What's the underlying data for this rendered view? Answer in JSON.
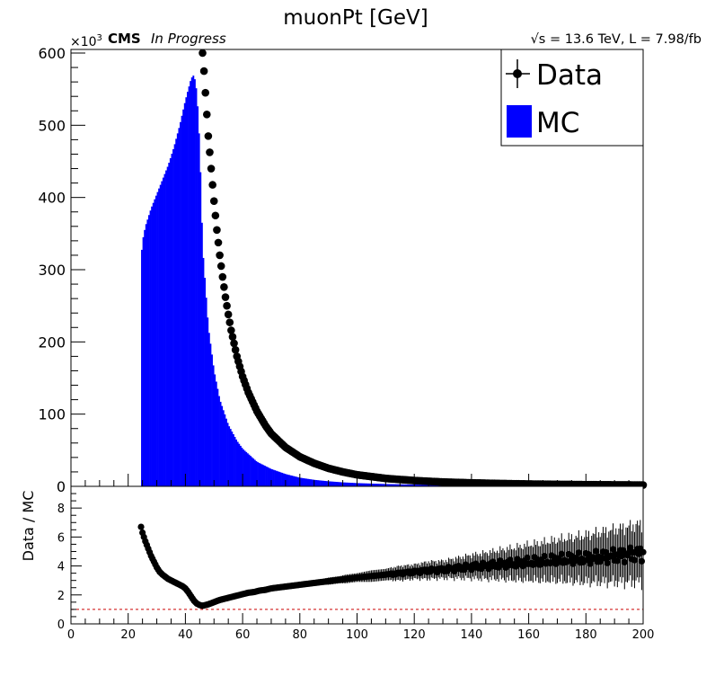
{
  "title": "muonPt [GeV]",
  "cms_label": "CMS",
  "cms_status": "In Progress",
  "energy_label": "√s = 13.6 TeV, L = 7.98/fb",
  "y_multiplier_base": "×10",
  "y_multiplier_exp": "3",
  "legend": {
    "data_label": "Data",
    "mc_label": "MC"
  },
  "ratio_ylabel": "Data / MC",
  "colors": {
    "mc": "#0000ff",
    "data": "#000000",
    "ref_line": "#cc0000"
  },
  "chart_data": [
    {
      "type": "bar",
      "role": "main",
      "title": "muonPt [GeV]",
      "xlim": [
        0,
        200
      ],
      "ylim": [
        0,
        600
      ],
      "y_unit": "x10^3",
      "yticks": [
        0,
        100,
        200,
        300,
        400,
        500,
        600
      ],
      "series": [
        {
          "name": "MC",
          "style": "filled histogram",
          "x": [
            24.5,
            25,
            26,
            28,
            30,
            32,
            34,
            36,
            38,
            40,
            41,
            42,
            43,
            44,
            45,
            46,
            48,
            50,
            52,
            55,
            58,
            60,
            65,
            70,
            75,
            80,
            85,
            90,
            95,
            100,
            105,
            110,
            120,
            130,
            140,
            150,
            160,
            170,
            180,
            190,
            200
          ],
          "values": [
            315,
            340,
            360,
            385,
            405,
            425,
            445,
            470,
            500,
            535,
            550,
            565,
            570,
            545,
            470,
            330,
            220,
            160,
            120,
            85,
            63,
            52,
            34,
            24,
            17,
            12,
            9,
            7,
            5.5,
            4.5,
            3.8,
            3.2,
            2.4,
            1.8,
            1.4,
            1.1,
            0.9,
            0.7,
            0.6,
            0.5,
            0.4
          ]
        },
        {
          "name": "Data",
          "style": "markers",
          "x": [
            46,
            46.5,
            47,
            47.5,
            48,
            49,
            50,
            51,
            52,
            53,
            54,
            55,
            56,
            58,
            60,
            62,
            65,
            68,
            70,
            75,
            80,
            85,
            90,
            95,
            100,
            110,
            120,
            130,
            140,
            150,
            160,
            170,
            180,
            190,
            200
          ],
          "values": [
            600,
            575,
            545,
            515,
            485,
            440,
            395,
            355,
            320,
            290,
            262,
            238,
            216,
            180,
            152,
            130,
            104,
            84,
            73,
            54,
            41,
            32,
            25,
            20,
            16,
            11,
            8,
            6,
            4.8,
            3.9,
            3.2,
            2.7,
            2.3,
            2.0,
            1.8
          ]
        }
      ]
    },
    {
      "type": "scatter",
      "role": "ratio",
      "ylabel": "Data / MC",
      "xlim": [
        0,
        200
      ],
      "ylim": [
        0,
        9.5
      ],
      "xticks": [
        0,
        20,
        40,
        60,
        80,
        100,
        120,
        140,
        160,
        180,
        200
      ],
      "yticks": [
        0,
        2,
        4,
        6,
        8
      ],
      "reference_line": 1,
      "series": [
        {
          "name": "Data / MC",
          "x": [
            24.5,
            25,
            26,
            27,
            28,
            29,
            30,
            31,
            32,
            33,
            34,
            35,
            36,
            37,
            38,
            39,
            40,
            41,
            42,
            43,
            44,
            45,
            46,
            47,
            48,
            50,
            52,
            54,
            56,
            58,
            60,
            62,
            64,
            66,
            68,
            70,
            72,
            74,
            76,
            78,
            80,
            82,
            84,
            86,
            88,
            90,
            92,
            94,
            96,
            98,
            100,
            105,
            110,
            115,
            120,
            125,
            130,
            135,
            140,
            145,
            150,
            155,
            160,
            165,
            170,
            175,
            180,
            185,
            190,
            195,
            200
          ],
          "values": [
            6.7,
            6.3,
            5.7,
            5.2,
            4.7,
            4.3,
            3.9,
            3.6,
            3.4,
            3.25,
            3.1,
            3.0,
            2.9,
            2.8,
            2.7,
            2.6,
            2.45,
            2.2,
            1.9,
            1.6,
            1.4,
            1.3,
            1.25,
            1.3,
            1.35,
            1.5,
            1.65,
            1.75,
            1.85,
            1.95,
            2.05,
            2.15,
            2.2,
            2.3,
            2.35,
            2.45,
            2.5,
            2.55,
            2.6,
            2.65,
            2.7,
            2.75,
            2.8,
            2.85,
            2.9,
            2.95,
            3.0,
            3.05,
            3.1,
            3.15,
            3.2,
            3.3,
            3.4,
            3.5,
            3.6,
            3.7,
            3.75,
            3.85,
            3.95,
            4.0,
            4.1,
            4.15,
            4.25,
            4.3,
            4.4,
            4.45,
            4.5,
            4.6,
            4.7,
            4.8,
            4.9
          ],
          "errors": [
            0.1,
            0.1,
            0.1,
            0.1,
            0.1,
            0.1,
            0.1,
            0.1,
            0.1,
            0.1,
            0.1,
            0.1,
            0.1,
            0.1,
            0.1,
            0.1,
            0.1,
            0.1,
            0.1,
            0.1,
            0.1,
            0.1,
            0.1,
            0.1,
            0.1,
            0.1,
            0.1,
            0.1,
            0.1,
            0.1,
            0.1,
            0.1,
            0.1,
            0.1,
            0.1,
            0.1,
            0.1,
            0.15,
            0.15,
            0.15,
            0.15,
            0.2,
            0.2,
            0.2,
            0.2,
            0.25,
            0.25,
            0.25,
            0.3,
            0.3,
            0.3,
            0.4,
            0.4,
            0.5,
            0.5,
            0.6,
            0.6,
            0.7,
            0.8,
            0.9,
            1.0,
            1.1,
            1.2,
            1.3,
            1.4,
            1.5,
            1.6,
            1.7,
            1.8,
            1.9,
            2.0
          ]
        }
      ]
    }
  ]
}
